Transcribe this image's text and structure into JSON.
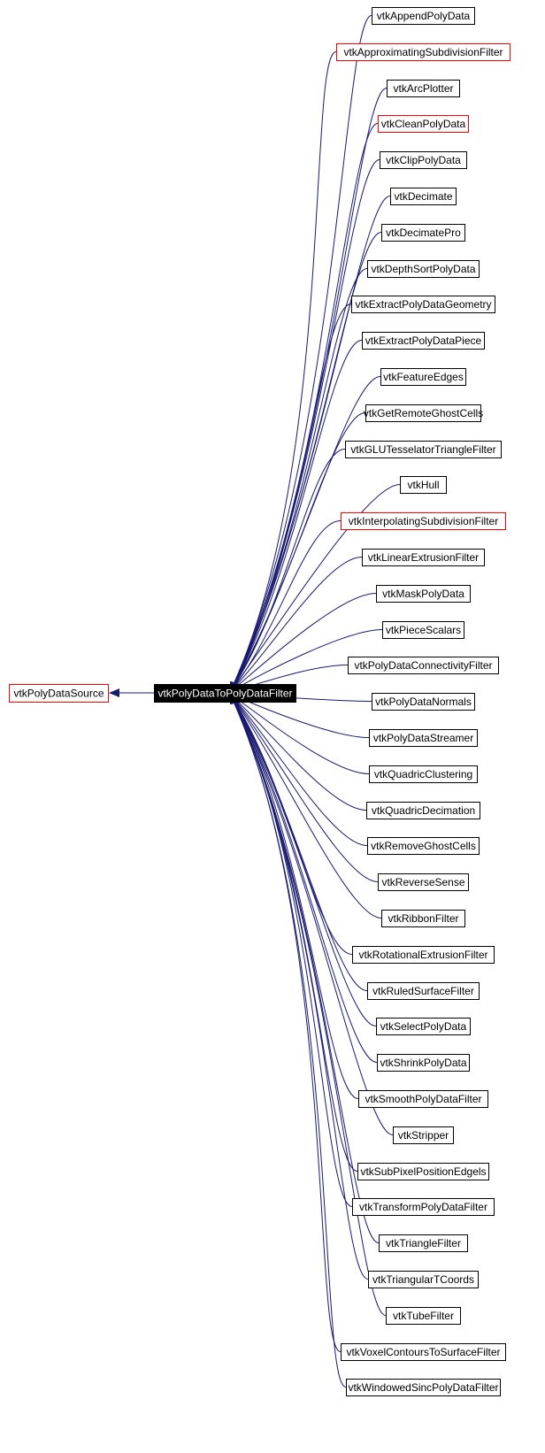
{
  "graph": {
    "type": "inheritance-graph",
    "base": {
      "label": "vtkPolyDataSource",
      "border": "red"
    },
    "focus": {
      "label": "vtkPolyDataToPolyDataFilter"
    },
    "children": [
      {
        "label": "vtkAppendPolyData",
        "border": "black"
      },
      {
        "label": "vtkApproximatingSubdivisionFilter",
        "border": "red"
      },
      {
        "label": "vtkArcPlotter",
        "border": "black"
      },
      {
        "label": "vtkCleanPolyData",
        "border": "red"
      },
      {
        "label": "vtkClipPolyData",
        "border": "black"
      },
      {
        "label": "vtkDecimate",
        "border": "black"
      },
      {
        "label": "vtkDecimatePro",
        "border": "black"
      },
      {
        "label": "vtkDepthSortPolyData",
        "border": "black"
      },
      {
        "label": "vtkExtractPolyDataGeometry",
        "border": "black"
      },
      {
        "label": "vtkExtractPolyDataPiece",
        "border": "black"
      },
      {
        "label": "vtkFeatureEdges",
        "border": "black"
      },
      {
        "label": "vtkGetRemoteGhostCells",
        "border": "black"
      },
      {
        "label": "vtkGLUTesselatorTriangleFilter",
        "border": "black"
      },
      {
        "label": "vtkHull",
        "border": "black"
      },
      {
        "label": "vtkInterpolatingSubdivisionFilter",
        "border": "red"
      },
      {
        "label": "vtkLinearExtrusionFilter",
        "border": "black"
      },
      {
        "label": "vtkMaskPolyData",
        "border": "black"
      },
      {
        "label": "vtkPieceScalars",
        "border": "black"
      },
      {
        "label": "vtkPolyDataConnectivityFilter",
        "border": "black"
      },
      {
        "label": "vtkPolyDataNormals",
        "border": "black"
      },
      {
        "label": "vtkPolyDataStreamer",
        "border": "black"
      },
      {
        "label": "vtkQuadricClustering",
        "border": "black"
      },
      {
        "label": "vtkQuadricDecimation",
        "border": "black"
      },
      {
        "label": "vtkRemoveGhostCells",
        "border": "black"
      },
      {
        "label": "vtkReverseSense",
        "border": "black"
      },
      {
        "label": "vtkRibbonFilter",
        "border": "black"
      },
      {
        "label": "vtkRotationalExtrusionFilter",
        "border": "black"
      },
      {
        "label": "vtkRuledSurfaceFilter",
        "border": "black"
      },
      {
        "label": "vtkSelectPolyData",
        "border": "black"
      },
      {
        "label": "vtkShrinkPolyData",
        "border": "black"
      },
      {
        "label": "vtkSmoothPolyDataFilter",
        "border": "black"
      },
      {
        "label": "vtkStripper",
        "border": "black"
      },
      {
        "label": "vtkSubPixelPositionEdgels",
        "border": "black"
      },
      {
        "label": "vtkTransformPolyDataFilter",
        "border": "black"
      },
      {
        "label": "vtkTriangleFilter",
        "border": "black"
      },
      {
        "label": "vtkTriangularTCoords",
        "border": "black"
      },
      {
        "label": "vtkTubeFilter",
        "border": "black"
      },
      {
        "label": "vtkVoxelContoursToSurfaceFilter",
        "border": "black"
      },
      {
        "label": "vtkWindowedSincPolyDataFilter",
        "border": "black"
      }
    ],
    "colors": {
      "edge": "#191970",
      "red_border": "#ff0000",
      "black_border": "#000000",
      "focus_fill": "#000000",
      "focus_text": "#ffffff",
      "node_fill": "#ffffff"
    }
  }
}
